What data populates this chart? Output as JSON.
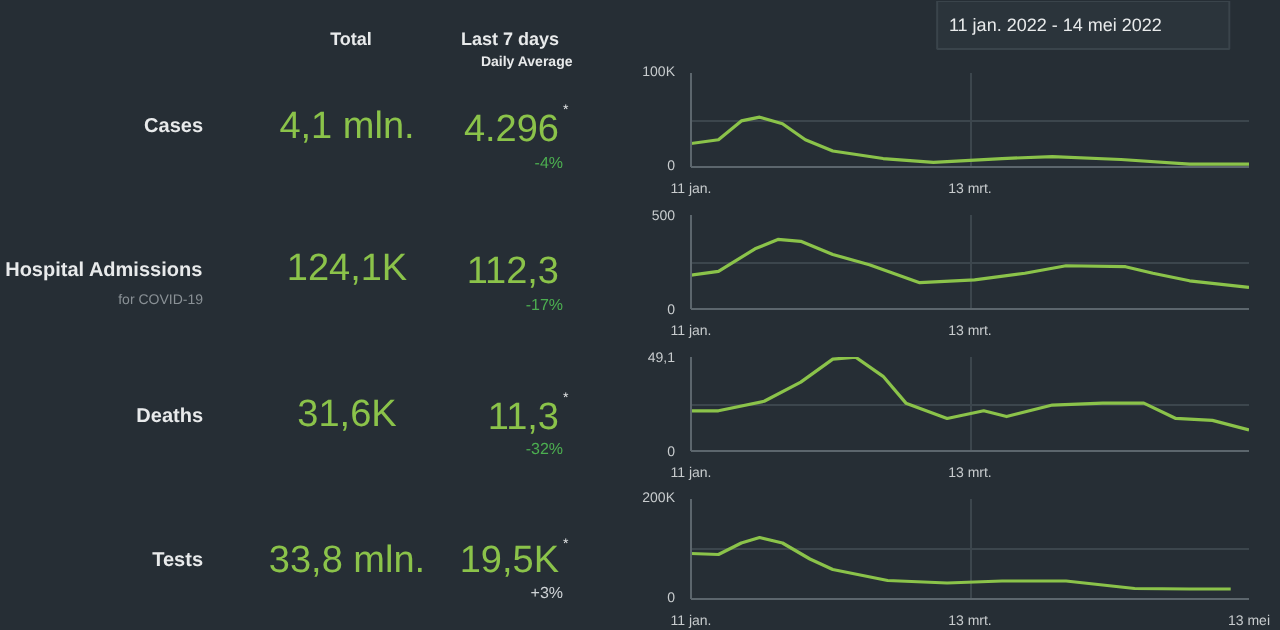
{
  "chart_data": [
    {
      "type": "other",
      "title": "11 jan. 2022 - 14 mei 2022",
      "annotations": [
        "Total",
        "Last 7 days",
        "Daily Average",
        "Cases",
        "4,1 mln.",
        "4.296",
        "*",
        "-4%",
        "Hospital Admissions",
        "for COVID-19",
        "124,1K",
        "112,3",
        "-17%",
        "Deaths",
        "31,6K",
        "11,3",
        "*",
        "-32%",
        "Tests",
        "33,8 mln.",
        "19,5K",
        "*",
        "+3%"
      ]
    },
    {
      "type": "line",
      "x": [
        "2022-01-11",
        "2022-01-17",
        "2022-01-22",
        "2022-01-26",
        "2022-01-31",
        "2022-02-05",
        "2022-02-11",
        "2022-02-22",
        "2022-03-05",
        "2022-03-20",
        "2022-03-31",
        "2022-04-15",
        "2022-04-30",
        "2022-05-13"
      ],
      "series": [
        {
          "color": "#8bc34a",
          "values": [
            25000,
            29000,
            49000,
            53000,
            46000,
            29000,
            17000,
            9000,
            5000,
            9000,
            11000,
            8000,
            3000,
            3000
          ]
        }
      ],
      "xlim": [
        "2022-01-11",
        "2022-05-13"
      ],
      "xticks": [
        {
          "value": "2022-01-11",
          "label": "11 jan."
        },
        {
          "value": "2022-03-13",
          "label": "13 mrt."
        }
      ],
      "ylim": [
        0,
        100000
      ],
      "yticks": [
        {
          "value": 0,
          "label": "0"
        },
        {
          "value": 50000,
          "label": null
        },
        {
          "value": 100000,
          "label": "100K"
        }
      ],
      "grid": true
    },
    {
      "type": "line",
      "x": [
        "2022-01-11",
        "2022-01-17",
        "2022-01-25",
        "2022-01-30",
        "2022-02-04",
        "2022-02-11",
        "2022-02-19",
        "2022-03-02",
        "2022-03-14",
        "2022-03-25",
        "2022-04-03",
        "2022-04-16",
        "2022-04-22",
        "2022-04-30",
        "2022-05-13"
      ],
      "series": [
        {
          "color": "#8bc34a",
          "values": [
            180,
            200,
            320,
            370,
            360,
            290,
            235,
            140,
            155,
            190,
            230,
            225,
            190,
            150,
            115
          ]
        }
      ],
      "xlim": [
        "2022-01-11",
        "2022-05-13"
      ],
      "xticks": [
        {
          "value": "2022-01-11",
          "label": "11 jan."
        },
        {
          "value": "2022-03-13",
          "label": "13 mrt."
        }
      ],
      "ylim": [
        0,
        500
      ],
      "yticks": [
        {
          "value": 0,
          "label": "0"
        },
        {
          "value": 250,
          "label": null
        },
        500
      ],
      "grid": true
    },
    {
      "type": "line",
      "x": [
        "2022-01-11",
        "2022-01-17",
        "2022-01-27",
        "2022-02-04",
        "2022-02-11",
        "2022-02-16",
        "2022-02-22",
        "2022-02-27",
        "2022-03-08",
        "2022-03-16",
        "2022-03-21",
        "2022-03-31",
        "2022-04-11",
        "2022-04-20",
        "2022-04-27",
        "2022-05-05",
        "2022-05-13"
      ],
      "series": [
        {
          "color": "#8bc34a",
          "values": [
            21,
            21,
            26,
            36,
            48,
            49,
            39,
            25,
            17,
            21,
            18,
            24,
            25,
            25,
            17,
            16,
            11
          ]
        }
      ],
      "xlim": [
        "2022-01-11",
        "2022-05-13"
      ],
      "xticks": [
        {
          "value": "2022-01-11",
          "label": "11 jan."
        },
        {
          "value": "2022-03-13",
          "label": "13 mrt."
        }
      ],
      "ylim": [
        0,
        49.1
      ],
      "yticks": [
        {
          "value": 0,
          "label": "0"
        },
        {
          "value": 24.55,
          "label": null
        },
        {
          "value": 49.1,
          "label": "49,1"
        }
      ],
      "grid": true
    },
    {
      "type": "line",
      "x": [
        "2022-01-11",
        "2022-01-17",
        "2022-01-22",
        "2022-01-26",
        "2022-01-31",
        "2022-02-06",
        "2022-02-11",
        "2022-02-23",
        "2022-03-08",
        "2022-03-20",
        "2022-04-03",
        "2022-04-18",
        "2022-04-30",
        "2022-05-09"
      ],
      "series": [
        {
          "color": "#8bc34a",
          "values": [
            91000,
            89000,
            112000,
            123000,
            112000,
            80000,
            59000,
            37000,
            32000,
            36000,
            36000,
            21000,
            20000,
            20000
          ]
        }
      ],
      "xlim": [
        "2022-01-11",
        "2022-05-13"
      ],
      "xticks": [
        {
          "value": "2022-01-11",
          "label": "11 jan."
        },
        {
          "value": "2022-03-13",
          "label": "13 mrt."
        },
        {
          "value": "2022-05-13",
          "label": "13 mei"
        }
      ],
      "ylim": [
        0,
        200000
      ],
      "yticks": [
        {
          "value": 0,
          "label": "0"
        },
        {
          "value": 100000,
          "label": null
        },
        {
          "value": 200000,
          "label": "200K"
        }
      ],
      "grid": true
    }
  ]
}
